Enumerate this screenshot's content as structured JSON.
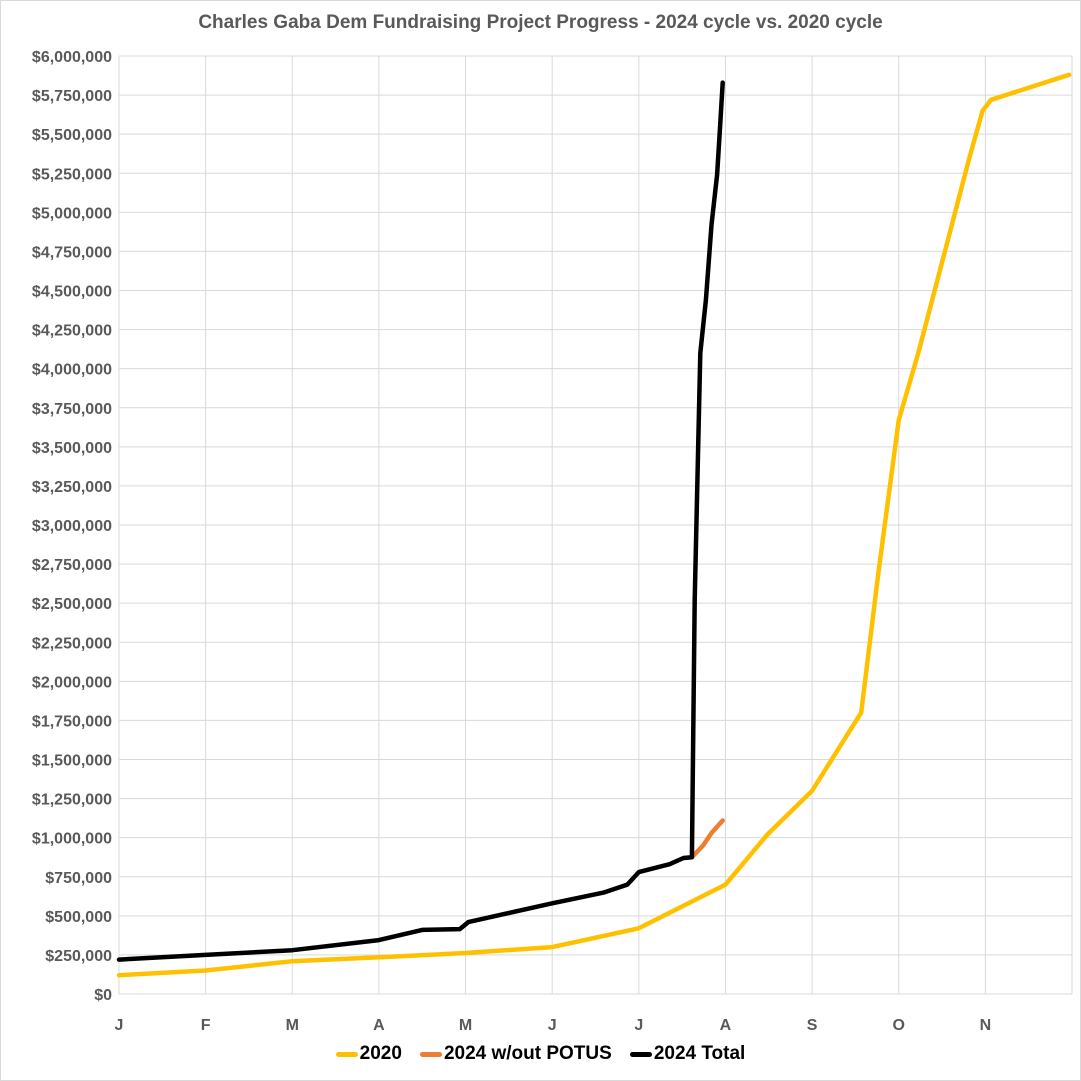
{
  "chart_data": {
    "type": "line",
    "title": "Charles Gaba Dem Fundraising Project Progress - 2024 cycle vs. 2020 cycle",
    "xlabel": "",
    "ylabel": "",
    "x_tick_labels": [
      "J",
      "F",
      "M",
      "A",
      "M",
      "J",
      "J",
      "A",
      "S",
      "O",
      "N"
    ],
    "x_range": [
      "01-01",
      "12-01"
    ],
    "ylim": [
      0,
      6000000
    ],
    "y_tick_step": 250000,
    "y_tick_format": "currency",
    "grid": true,
    "legend_position": "bottom",
    "series": [
      {
        "name": "2020",
        "color": "#FFC000",
        "points": [
          [
            "01-01",
            120000
          ],
          [
            "02-01",
            150000
          ],
          [
            "03-01",
            210000
          ],
          [
            "04-01",
            235000
          ],
          [
            "05-01",
            262000
          ],
          [
            "06-01",
            300000
          ],
          [
            "07-01",
            420000
          ],
          [
            "08-01",
            700000
          ],
          [
            "08-16",
            1020000
          ],
          [
            "09-01",
            1300000
          ],
          [
            "09-18",
            1800000
          ],
          [
            "09-24",
            2700000
          ],
          [
            "10-01",
            3670000
          ],
          [
            "10-08",
            4100000
          ],
          [
            "10-19",
            4850000
          ],
          [
            "10-26",
            5330000
          ],
          [
            "10-31",
            5650000
          ],
          [
            "11-03",
            5720000
          ],
          [
            "11-30",
            5880000
          ]
        ]
      },
      {
        "name": "2024 w/out POTUS",
        "color": "#ED7D31",
        "points": [
          [
            "07-20",
            875000
          ],
          [
            "07-24",
            950000
          ],
          [
            "07-27",
            1030000
          ],
          [
            "07-31",
            1110000
          ]
        ]
      },
      {
        "name": "2024 Total",
        "color": "#000000",
        "points": [
          [
            "01-01",
            220000
          ],
          [
            "02-01",
            250000
          ],
          [
            "03-01",
            280000
          ],
          [
            "04-01",
            345000
          ],
          [
            "04-16",
            410000
          ],
          [
            "04-29",
            415000
          ],
          [
            "05-02",
            460000
          ],
          [
            "06-01",
            580000
          ],
          [
            "06-19",
            650000
          ],
          [
            "06-27",
            700000
          ],
          [
            "07-01",
            780000
          ],
          [
            "07-12",
            830000
          ],
          [
            "07-17",
            870000
          ],
          [
            "07-20",
            875000
          ],
          [
            "07-21",
            2520000
          ],
          [
            "07-23",
            4100000
          ],
          [
            "07-25",
            4440000
          ],
          [
            "07-27",
            4920000
          ],
          [
            "07-29",
            5240000
          ],
          [
            "07-30",
            5530000
          ],
          [
            "07-31",
            5830000
          ]
        ]
      }
    ]
  }
}
